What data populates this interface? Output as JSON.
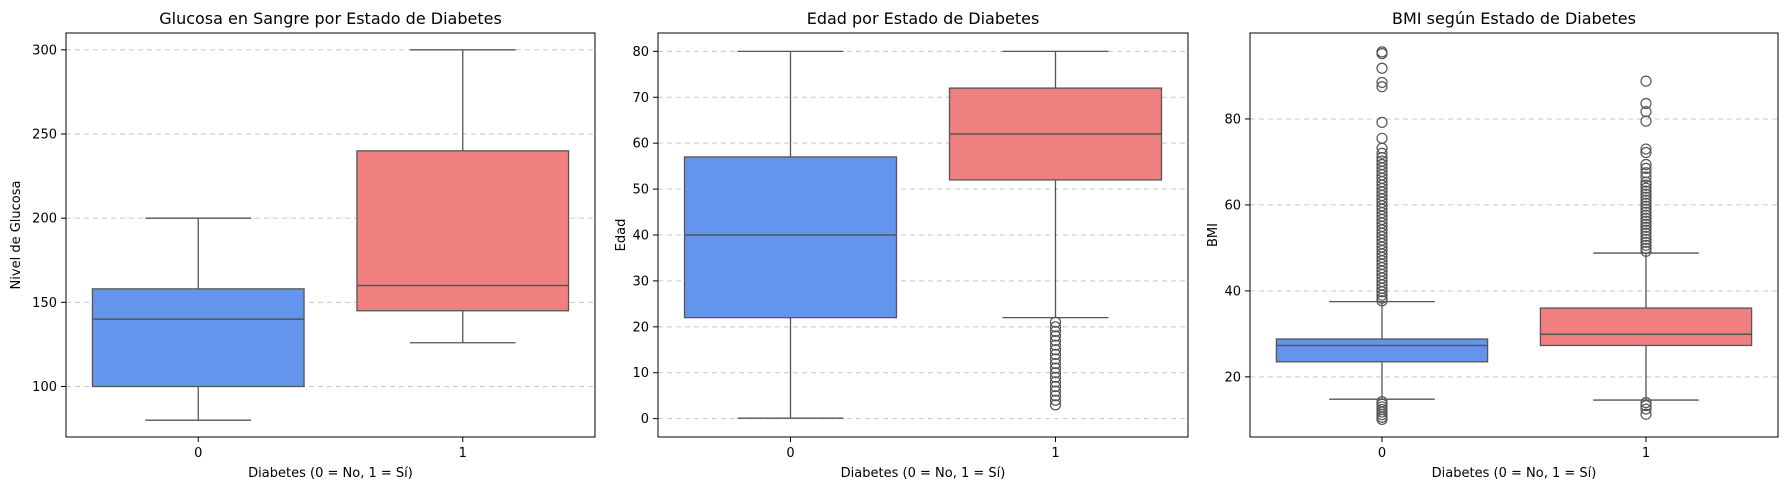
{
  "chart_data": [
    {
      "type": "box",
      "title": "Glucosa en Sangre por Estado de Diabetes",
      "xlabel": "Diabetes (0 = No, 1 = Sí)",
      "ylabel": "Nivel de Glucosa",
      "categories": [
        "0",
        "1"
      ],
      "ylim": [
        70,
        310
      ],
      "yticks": [
        100,
        150,
        200,
        250,
        300
      ],
      "grid": true,
      "boxes": [
        {
          "category": "0",
          "color": "#6495ED",
          "whisker_low": 80,
          "q1": 100,
          "median": 140,
          "q3": 158,
          "whisker_high": 200,
          "outliers": []
        },
        {
          "category": "1",
          "color": "#F08080",
          "whisker_low": 126,
          "q1": 145,
          "median": 160,
          "q3": 240,
          "whisker_high": 300,
          "outliers": []
        }
      ]
    },
    {
      "type": "box",
      "title": "Edad por Estado de Diabetes",
      "xlabel": "Diabetes (0 = No, 1 = Sí)",
      "ylabel": "Edad",
      "categories": [
        "0",
        "1"
      ],
      "ylim": [
        -4,
        84
      ],
      "yticks": [
        0,
        10,
        20,
        30,
        40,
        50,
        60,
        70,
        80
      ],
      "grid": true,
      "boxes": [
        {
          "category": "0",
          "color": "#6495ED",
          "whisker_low": 0.1,
          "q1": 22,
          "median": 40,
          "q3": 57,
          "whisker_high": 80,
          "outliers": []
        },
        {
          "category": "1",
          "color": "#F08080",
          "whisker_low": 22,
          "q1": 52,
          "median": 62,
          "q3": 72,
          "whisker_high": 80,
          "outliers": [
            21,
            20,
            19,
            18,
            17,
            16,
            15,
            14,
            13,
            12,
            11,
            10,
            9,
            8,
            7,
            6,
            5,
            4,
            3
          ]
        }
      ]
    },
    {
      "type": "box",
      "title": "BMI según Estado de Diabetes",
      "xlabel": "Diabetes (0 = No, 1 = Sí)",
      "ylabel": "BMI",
      "categories": [
        "0",
        "1"
      ],
      "ylim": [
        6,
        100
      ],
      "yticks": [
        20,
        40,
        60,
        80
      ],
      "grid": true,
      "boxes": [
        {
          "category": "0",
          "color": "#6495ED",
          "whisker_low": 14.8,
          "q1": 23.5,
          "median": 27.3,
          "q3": 28.8,
          "whisker_high": 37.5,
          "outliers": [
            10.1,
            10.6,
            11.2,
            11.8,
            12.4,
            13.0,
            13.6,
            14.2,
            37.7,
            38.3,
            39,
            39.8,
            40.6,
            41.4,
            42.2,
            43,
            43.8,
            44.6,
            45.4,
            46.2,
            47,
            47.8,
            48.6,
            49.4,
            50.2,
            51,
            51.8,
            52.6,
            53.4,
            54.2,
            55,
            55.8,
            56.6,
            57.4,
            58.2,
            59,
            59.8,
            60.6,
            61.4,
            62.2,
            63,
            63.8,
            64.6,
            65.4,
            66.2,
            67,
            67.8,
            68.6,
            69.4,
            70.2,
            71,
            72,
            73.2,
            75.5,
            79.2,
            87.5,
            88.5,
            91.8,
            95.2,
            95.6
          ]
        },
        {
          "category": "1",
          "color": "#F08080",
          "whisker_low": 14.6,
          "q1": 27.3,
          "median": 29.9,
          "q3": 36.0,
          "whisker_high": 48.8,
          "outliers": [
            11.3,
            12.5,
            13.3,
            14.0,
            49.2,
            49.9,
            50.6,
            51.3,
            52,
            52.7,
            53.4,
            54.1,
            54.8,
            55.5,
            56.2,
            56.9,
            57.6,
            58.3,
            59,
            59.7,
            60.4,
            61.1,
            61.8,
            62.5,
            63.2,
            63.9,
            64.6,
            65.3,
            66.5,
            67.5,
            68.5,
            69.4,
            72.2,
            73,
            79.5,
            81.7,
            83.6,
            88.8
          ]
        }
      ]
    }
  ]
}
